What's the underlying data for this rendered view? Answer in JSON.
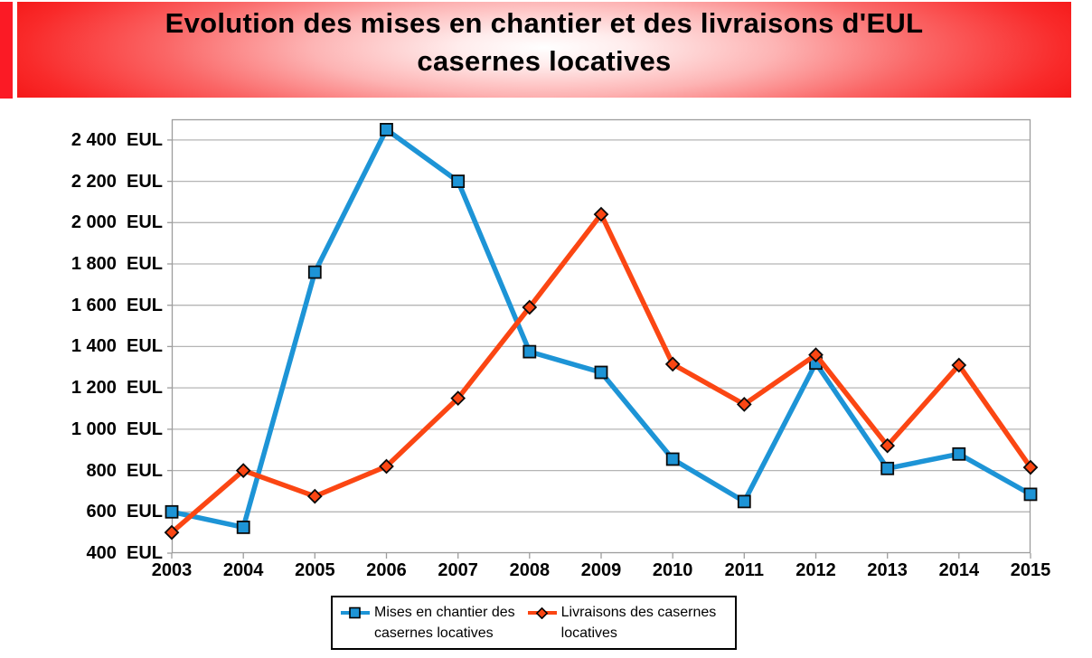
{
  "banner": {
    "title_line1": "Evolution des mises en chantier et des livraisons d'EUL",
    "title_line2": "casernes locatives",
    "edge_color": "#f21010",
    "accent_bar_color": "#fb1a25"
  },
  "chart_data": {
    "type": "line",
    "title": "Evolution des mises en chantier et des livraisons d'EUL casernes locatives",
    "x_categories": [
      "2003",
      "2004",
      "2005",
      "2006",
      "2007",
      "2008",
      "2009",
      "2010",
      "2011",
      "2012",
      "2013",
      "2014",
      "2015"
    ],
    "series": [
      {
        "name": "Mises en chantier des casernes locatives",
        "color": "#1d94d6",
        "marker": "square",
        "values": [
          600,
          525,
          1760,
          2450,
          2200,
          1375,
          1275,
          855,
          650,
          1320,
          810,
          880,
          685
        ]
      },
      {
        "name": "Livraisons des casernes locatives",
        "color": "#fb4613",
        "marker": "diamond",
        "values": [
          500,
          800,
          675,
          820,
          1150,
          1590,
          2040,
          1315,
          1120,
          1360,
          920,
          1310,
          815
        ]
      }
    ],
    "unit": "EUL",
    "ylim": [
      400,
      2500
    ],
    "y_ticks": [
      {
        "value": 400,
        "label": "400  EUL"
      },
      {
        "value": 600,
        "label": "600  EUL"
      },
      {
        "value": 800,
        "label": "800  EUL"
      },
      {
        "value": 1000,
        "label": "1 000  EUL"
      },
      {
        "value": 1200,
        "label": "1 200  EUL"
      },
      {
        "value": 1400,
        "label": "1 400  EUL"
      },
      {
        "value": 1600,
        "label": "1 600  EUL"
      },
      {
        "value": 1800,
        "label": "1 800  EUL"
      },
      {
        "value": 2000,
        "label": "2 000  EUL"
      },
      {
        "value": 2200,
        "label": "2 200  EUL"
      },
      {
        "value": 2400,
        "label": "2 400  EUL"
      }
    ],
    "grid": true,
    "legend_position": "bottom",
    "plot_border_color": "#9d9d9d",
    "gridline_color": "#b5b5b5"
  },
  "legend": {
    "items": [
      {
        "label_line1": "Mises en chantier des",
        "label_line2": "casernes locatives"
      },
      {
        "label_line1": "Livraisons des casernes",
        "label_line2": "locatives"
      }
    ]
  }
}
